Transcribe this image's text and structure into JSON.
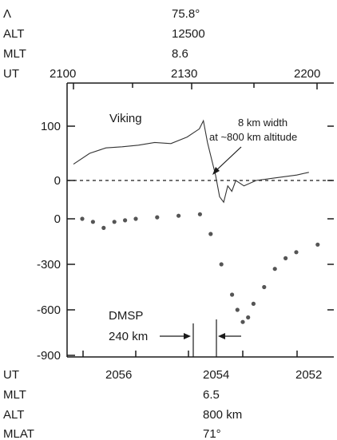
{
  "chart_data": {
    "type": "line",
    "top_header": {
      "rows": [
        {
          "label": "Λ",
          "value": "75.8°"
        },
        {
          "label": "ALT",
          "value": "12500"
        },
        {
          "label": "MLT",
          "value": "8.6"
        }
      ],
      "ut_label": "UT",
      "ut_ticks": [
        "2100",
        "2130",
        "2200"
      ]
    },
    "bottom_header": {
      "ut_label": "UT",
      "ut_ticks": [
        "2056",
        "2054",
        "2052"
      ],
      "rows": [
        {
          "label": "MLT",
          "value": "6.5"
        },
        {
          "label": "ALT",
          "value": "800 km"
        },
        {
          "label": "MLAT",
          "value": "71°"
        }
      ]
    },
    "y_ticks": [
      "100",
      "0",
      "0",
      "-300",
      "-600",
      "-900"
    ],
    "series": [
      {
        "name": "Viking",
        "style": "line",
        "x_ut": [
          "2100",
          "2104",
          "2108",
          "2112",
          "2116",
          "2120",
          "2124",
          "2128",
          "2130",
          "2131",
          "2132",
          "2133",
          "2134",
          "2135",
          "2136",
          "2137",
          "2138",
          "2139",
          "2140",
          "2142",
          "2145",
          "2150",
          "2155",
          "2158"
        ],
        "values": [
          30,
          50,
          60,
          62,
          65,
          70,
          68,
          80,
          90,
          95,
          110,
          70,
          40,
          10,
          -30,
          -40,
          -10,
          -20,
          0,
          -10,
          0,
          5,
          10,
          15
        ]
      },
      {
        "name": "DMSP",
        "style": "dots",
        "x_ut": [
          "2057.0",
          "2056.8",
          "2056.6",
          "2056.4",
          "2056.2",
          "2056.0",
          "2055.6",
          "2055.2",
          "2054.8",
          "2054.6",
          "2054.4",
          "2054.2",
          "2054.1",
          "2054.0",
          "2053.9",
          "2053.8",
          "2053.6",
          "2053.4",
          "2053.2",
          "2053.0",
          "2052.6",
          "2052.2",
          "2052.0"
        ],
        "values": [
          0,
          -20,
          -60,
          -20,
          -10,
          0,
          10,
          20,
          30,
          -100,
          -300,
          -500,
          -600,
          -680,
          -650,
          -560,
          -450,
          -330,
          -260,
          -220,
          -170,
          -140,
          -130
        ]
      }
    ],
    "annotations": {
      "viking_label": "Viking",
      "width_line1": "8 km width",
      "width_line2": "at ~800 km altitude",
      "dmsp_label": "DMSP",
      "dmsp_width": "240 km"
    },
    "zero_line": "dashed"
  }
}
